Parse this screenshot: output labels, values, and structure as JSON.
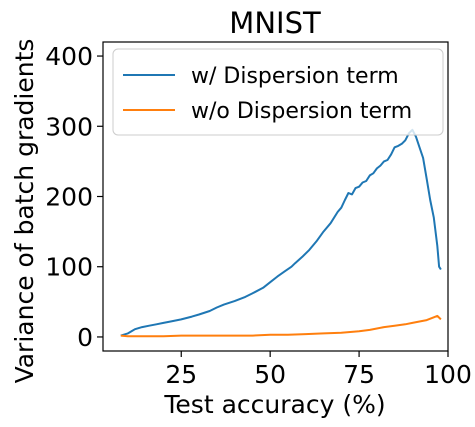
{
  "chart_data": {
    "type": "line",
    "title": "MNIST",
    "xlabel": "Test accuracy (%)",
    "ylabel": "Variance of batch gradients",
    "xlim": [
      3,
      100
    ],
    "ylim": [
      -20,
      420
    ],
    "xticks": [
      25,
      50,
      75,
      100
    ],
    "yticks": [
      0,
      100,
      200,
      300,
      400
    ],
    "grid": false,
    "legend_position": "top-right",
    "series": [
      {
        "name": "w/ Dispersion term",
        "color": "#1f77b4",
        "points": [
          [
            8,
            2
          ],
          [
            10,
            5
          ],
          [
            11,
            8
          ],
          [
            12,
            11
          ],
          [
            14,
            14
          ],
          [
            16,
            16
          ],
          [
            18,
            18
          ],
          [
            20,
            20
          ],
          [
            22,
            22
          ],
          [
            25,
            25
          ],
          [
            28,
            29
          ],
          [
            30,
            32
          ],
          [
            33,
            37
          ],
          [
            35,
            42
          ],
          [
            37,
            46
          ],
          [
            40,
            51
          ],
          [
            43,
            57
          ],
          [
            45,
            62
          ],
          [
            48,
            70
          ],
          [
            50,
            78
          ],
          [
            52,
            86
          ],
          [
            54,
            93
          ],
          [
            56,
            100
          ],
          [
            57,
            105
          ],
          [
            59,
            114
          ],
          [
            61,
            124
          ],
          [
            63,
            136
          ],
          [
            65,
            150
          ],
          [
            67,
            162
          ],
          [
            69,
            178
          ],
          [
            70,
            184
          ],
          [
            71,
            195
          ],
          [
            72,
            205
          ],
          [
            73,
            203
          ],
          [
            74,
            212
          ],
          [
            75,
            214
          ],
          [
            76,
            220
          ],
          [
            77,
            222
          ],
          [
            78,
            230
          ],
          [
            79,
            233
          ],
          [
            80,
            240
          ],
          [
            81,
            244
          ],
          [
            82,
            250
          ],
          [
            83,
            252
          ],
          [
            84,
            260
          ],
          [
            85,
            270
          ],
          [
            86,
            272
          ],
          [
            87,
            275
          ],
          [
            88,
            280
          ],
          [
            89,
            290
          ],
          [
            90,
            295
          ],
          [
            91,
            285
          ],
          [
            92,
            270
          ],
          [
            93,
            255
          ],
          [
            94,
            225
          ],
          [
            95,
            195
          ],
          [
            96,
            170
          ],
          [
            97,
            130
          ],
          [
            97.5,
            100
          ],
          [
            98,
            96
          ]
        ]
      },
      {
        "name": "w/o Dispersion term",
        "color": "#ff7f0e",
        "points": [
          [
            8,
            2
          ],
          [
            10,
            1
          ],
          [
            15,
            1
          ],
          [
            20,
            1
          ],
          [
            25,
            2
          ],
          [
            30,
            2
          ],
          [
            35,
            2
          ],
          [
            40,
            2
          ],
          [
            45,
            2
          ],
          [
            50,
            3
          ],
          [
            55,
            3
          ],
          [
            60,
            4
          ],
          [
            65,
            5
          ],
          [
            70,
            6
          ],
          [
            75,
            8
          ],
          [
            78,
            10
          ],
          [
            80,
            12
          ],
          [
            82,
            14
          ],
          [
            85,
            16
          ],
          [
            88,
            18
          ],
          [
            90,
            20
          ],
          [
            92,
            22
          ],
          [
            94,
            24
          ],
          [
            96,
            28
          ],
          [
            97,
            30
          ],
          [
            98,
            25
          ]
        ]
      }
    ]
  }
}
